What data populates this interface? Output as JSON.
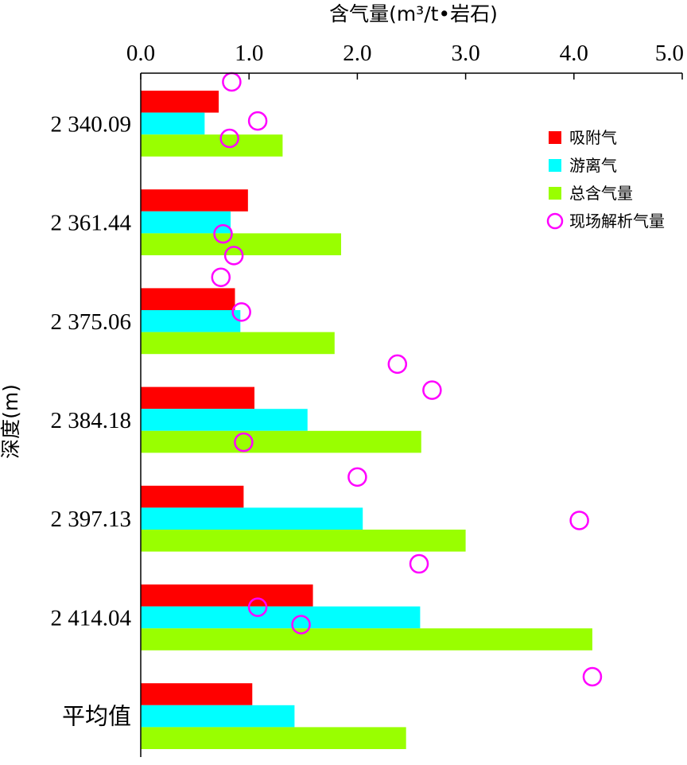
{
  "chart_data": {
    "type": "bar",
    "orientation": "horizontal",
    "title": "",
    "xlabel": "含气量(m³/t•岩石)",
    "ylabel": "深度(m)",
    "xlim": [
      0,
      5
    ],
    "x_ticks": [
      "0.0",
      "1.0",
      "2.0",
      "3.0",
      "4.0",
      "5.0"
    ],
    "categories": [
      "2 340.09",
      "2 361.44",
      "2 375.06",
      "2 384.18",
      "2 397.13",
      "2 414.04",
      "平均值"
    ],
    "series": [
      {
        "name": "吸附气",
        "type": "bar",
        "color": "#ff0000",
        "values": [
          0.72,
          0.99,
          0.87,
          1.05,
          0.95,
          1.59,
          1.03
        ]
      },
      {
        "name": "游离气",
        "type": "bar",
        "color": "#00ffff",
        "values": [
          0.59,
          0.83,
          0.92,
          1.54,
          2.05,
          2.58,
          1.42
        ]
      },
      {
        "name": "总含气量",
        "type": "bar",
        "color": "#99ff00",
        "values": [
          1.31,
          1.85,
          1.79,
          2.59,
          3.0,
          4.17,
          2.45
        ]
      },
      {
        "name": "现场解析气量",
        "type": "scatter",
        "color": "#ff00ff",
        "marker": "open-circle",
        "points": [
          {
            "x": 0.84,
            "y": 2341.5
          },
          {
            "x": 1.08,
            "y": 2346.0
          },
          {
            "x": 0.82,
            "y": 2348.0
          },
          {
            "x": 0.76,
            "y": 2359.0
          },
          {
            "x": 0.86,
            "y": 2361.5
          },
          {
            "x": 0.74,
            "y": 2364.0
          },
          {
            "x": 0.93,
            "y": 2368.0
          },
          {
            "x": 2.37,
            "y": 2374.0
          },
          {
            "x": 2.69,
            "y": 2377.0
          },
          {
            "x": 0.95,
            "y": 2383.0
          },
          {
            "x": 2.0,
            "y": 2387.0
          },
          {
            "x": 4.05,
            "y": 2392.0
          },
          {
            "x": 2.57,
            "y": 2397.0
          },
          {
            "x": 1.08,
            "y": 2402.0
          },
          {
            "x": 1.48,
            "y": 2404.0
          },
          {
            "x": 4.17,
            "y": 2410.0
          }
        ]
      }
    ],
    "legend": {
      "placement": "top-right"
    },
    "grid": false
  }
}
